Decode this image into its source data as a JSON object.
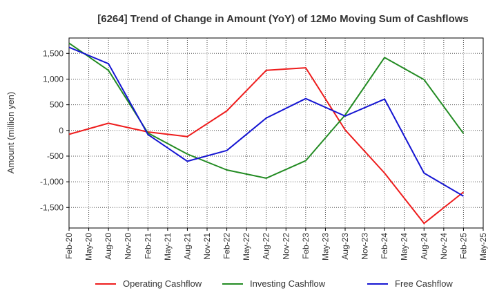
{
  "chart_data": {
    "type": "line",
    "title": "[6264]  Trend of Change in Amount (YoY) of 12Mo Moving Sum of Cashflows",
    "xlabel": "",
    "ylabel": "Amount (million yen)",
    "ylim": [
      -1900,
      1800
    ],
    "y_ticks": [
      1500,
      1000,
      500,
      0,
      -500,
      -1000,
      -1500
    ],
    "y_tick_labels": [
      "1,500",
      "1,000",
      "500",
      "0",
      "-500",
      "-1,000",
      "-1,500"
    ],
    "categories": [
      "Feb-20",
      "May-20",
      "Aug-20",
      "Nov-20",
      "Feb-21",
      "May-21",
      "Aug-21",
      "Nov-21",
      "Feb-22",
      "May-22",
      "Aug-22",
      "Nov-22",
      "Feb-23",
      "May-23",
      "Aug-23",
      "Nov-23",
      "Feb-24",
      "May-24",
      "Aug-24",
      "Nov-24",
      "Feb-25",
      "May-25"
    ],
    "grid": true,
    "legend_position": "bottom",
    "series": [
      {
        "name": "Operating Cashflow",
        "color": "#ee1c1c",
        "points": [
          [
            "Feb-20",
            -75
          ],
          [
            "Aug-20",
            140
          ],
          [
            "Feb-21",
            -30
          ],
          [
            "Aug-21",
            -120
          ],
          [
            "Feb-22",
            380
          ],
          [
            "Aug-22",
            1170
          ],
          [
            "Feb-23",
            1220
          ],
          [
            "Aug-23",
            10
          ],
          [
            "Feb-24",
            -830
          ],
          [
            "Aug-24",
            -1810
          ],
          [
            "Feb-25",
            -1200
          ]
        ]
      },
      {
        "name": "Investing Cashflow",
        "color": "#228b22",
        "points": [
          [
            "Feb-20",
            1700
          ],
          [
            "Aug-20",
            1170
          ],
          [
            "Feb-21",
            -50
          ],
          [
            "Aug-21",
            -460
          ],
          [
            "Feb-22",
            -770
          ],
          [
            "Aug-22",
            -930
          ],
          [
            "Feb-23",
            -590
          ],
          [
            "Aug-23",
            300
          ],
          [
            "Feb-24",
            1420
          ],
          [
            "Aug-24",
            990
          ],
          [
            "Feb-25",
            -60
          ]
        ]
      },
      {
        "name": "Free Cashflow",
        "color": "#1414d2",
        "points": [
          [
            "Feb-20",
            1620
          ],
          [
            "Aug-20",
            1300
          ],
          [
            "Feb-21",
            -80
          ],
          [
            "Aug-21",
            -600
          ],
          [
            "Feb-22",
            -390
          ],
          [
            "Aug-22",
            240
          ],
          [
            "Feb-23",
            620
          ],
          [
            "Aug-23",
            280
          ],
          [
            "Feb-24",
            610
          ],
          [
            "Aug-24",
            -830
          ],
          [
            "Feb-25",
            -1280
          ]
        ]
      }
    ]
  }
}
